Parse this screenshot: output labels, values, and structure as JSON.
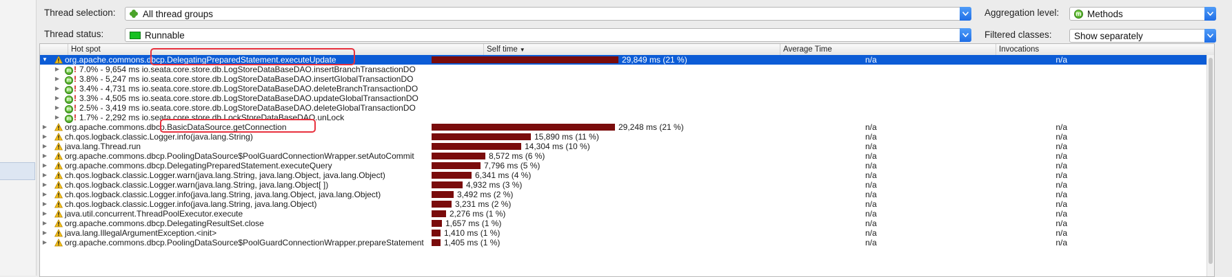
{
  "controls": {
    "thread_selection_label": "Thread selection:",
    "thread_selection_value": "All thread groups",
    "thread_status_label": "Thread status:",
    "thread_status_value": "Runnable",
    "aggregation_label": "Aggregation level:",
    "aggregation_value": "Methods",
    "filtered_label": "Filtered classes:",
    "filtered_value": "Show separately"
  },
  "columns": {
    "hot_spot": "Hot spot",
    "self_time": "Self time",
    "self_time_sort": "▼",
    "average_time": "Average Time",
    "invocations": "Invocations"
  },
  "colors": {
    "bar": "#7a0c0c",
    "selection": "#0c5cd6",
    "highlight_box": "#e8303d"
  },
  "rows": [
    {
      "name": "org.apache.commons.dbcp.DelegatingPreparedStatement.executeUpdate",
      "time": "29,849 ms (21 %)",
      "self_ms": 29849,
      "inv": "n/a",
      "inv2": "n/a",
      "level": 0,
      "expanded": true
    },
    {
      "name": "7.0% - 9,654 ms io.seata.core.store.db.LogStoreDataBaseDAO.insertBranchTransactionDO",
      "level": 1,
      "expander": true
    },
    {
      "name": "3.8% - 5,247 ms io.seata.core.store.db.LogStoreDataBaseDAO.insertGlobalTransactionDO",
      "level": 1,
      "expander": true
    },
    {
      "name": "3.4% - 4,731 ms io.seata.core.store.db.LogStoreDataBaseDAO.deleteBranchTransactionDO",
      "level": 1,
      "expander": true
    },
    {
      "name": "3.3% - 4,505 ms io.seata.core.store.db.LogStoreDataBaseDAO.updateGlobalTransactionDO",
      "level": 1,
      "expander": true
    },
    {
      "name": "2.5% - 3,419 ms io.seata.core.store.db.LogStoreDataBaseDAO.deleteGlobalTransactionDO",
      "level": 1,
      "expander": true
    },
    {
      "name": "1.7% - 2,292 ms io.seata.core.store.db.LockStoreDataBaseDAO.unLock",
      "level": 1,
      "expander": true
    },
    {
      "name": "org.apache.commons.dbcp.BasicDataSource.getConnection",
      "time": "29,248 ms (21 %)",
      "self_ms": 29248,
      "inv": "n/a",
      "inv2": "n/a",
      "level": 0
    },
    {
      "name": "ch.qos.logback.classic.Logger.info(java.lang.String)",
      "time": "15,890 ms (11 %)",
      "self_ms": 15890,
      "inv": "n/a",
      "inv2": "n/a",
      "level": 0
    },
    {
      "name": "java.lang.Thread.run",
      "time": "14,304 ms (10 %)",
      "self_ms": 14304,
      "inv": "n/a",
      "inv2": "n/a",
      "level": 0
    },
    {
      "name": "org.apache.commons.dbcp.PoolingDataSource$PoolGuardConnectionWrapper.setAutoCommit",
      "time": "8,572 ms (6 %)",
      "self_ms": 8572,
      "inv": "n/a",
      "inv2": "n/a",
      "level": 0
    },
    {
      "name": "org.apache.commons.dbcp.DelegatingPreparedStatement.executeQuery",
      "time": "7,796 ms (5 %)",
      "self_ms": 7796,
      "inv": "n/a",
      "inv2": "n/a",
      "level": 0
    },
    {
      "name": "ch.qos.logback.classic.Logger.warn(java.lang.String, java.lang.Object, java.lang.Object)",
      "time": "6,341 ms (4 %)",
      "self_ms": 6341,
      "inv": "n/a",
      "inv2": "n/a",
      "level": 0
    },
    {
      "name": "ch.qos.logback.classic.Logger.warn(java.lang.String, java.lang.Object[ ])",
      "time": "4,932 ms (3 %)",
      "self_ms": 4932,
      "inv": "n/a",
      "inv2": "n/a",
      "level": 0
    },
    {
      "name": "ch.qos.logback.classic.Logger.info(java.lang.String, java.lang.Object, java.lang.Object)",
      "time": "3,492 ms (2 %)",
      "self_ms": 3492,
      "inv": "n/a",
      "inv2": "n/a",
      "level": 0
    },
    {
      "name": "ch.qos.logback.classic.Logger.info(java.lang.String, java.lang.Object)",
      "time": "3,231 ms (2 %)",
      "self_ms": 3231,
      "inv": "n/a",
      "inv2": "n/a",
      "level": 0
    },
    {
      "name": "java.util.concurrent.ThreadPoolExecutor.execute",
      "time": "2,276 ms (1 %)",
      "self_ms": 2276,
      "inv": "n/a",
      "inv2": "n/a",
      "level": 0
    },
    {
      "name": "org.apache.commons.dbcp.DelegatingResultSet.close",
      "time": "1,657 ms (1 %)",
      "self_ms": 1657,
      "inv": "n/a",
      "inv2": "n/a",
      "level": 0
    },
    {
      "name": "java.lang.IllegalArgumentException.<init>",
      "time": "1,410 ms (1 %)",
      "self_ms": 1410,
      "inv": "n/a",
      "inv2": "n/a",
      "level": 0
    },
    {
      "name": "org.apache.commons.dbcp.PoolingDataSource$PoolGuardConnectionWrapper.prepareStatement",
      "time": "1,405 ms (1 %)",
      "self_ms": 1405,
      "inv": "n/a",
      "inv2": "n/a",
      "level": 0
    }
  ]
}
